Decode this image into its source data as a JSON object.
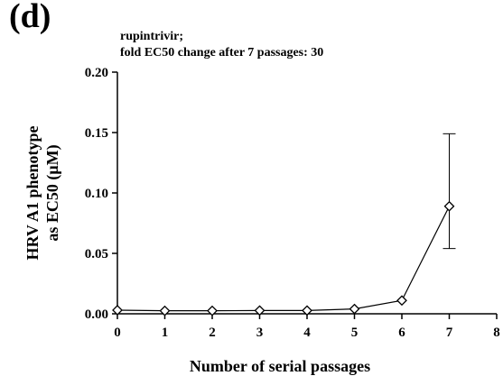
{
  "panel_label": "(d)",
  "chart_data": {
    "type": "line",
    "title_lines": [
      "rupintrivir;",
      "fold EC50 change after 7 passages: 30"
    ],
    "xlabel": "Number of serial passages",
    "ylabel_lines": [
      "HRV A1 phenotype",
      "as EC50 (μM)"
    ],
    "xlim": [
      0,
      8
    ],
    "ylim": [
      0,
      0.2
    ],
    "x_ticks": [
      0,
      1,
      2,
      3,
      4,
      5,
      6,
      7,
      8
    ],
    "x_tick_labels": [
      "0",
      "1",
      "2",
      "3",
      "4",
      "5",
      "6",
      "7",
      "8"
    ],
    "y_ticks": [
      0,
      0.05,
      0.1,
      0.15,
      0.2
    ],
    "y_tick_labels": [
      "0.00",
      "0.05",
      "0.10",
      "0.15",
      "0.20"
    ],
    "marker": "diamond-open",
    "series": [
      {
        "x": [
          0,
          1,
          2,
          3,
          4,
          5,
          6,
          7
        ],
        "y": [
          0.003,
          0.0025,
          0.0025,
          0.0027,
          0.0027,
          0.004,
          0.011,
          0.089
        ],
        "error_bars": [
          null,
          null,
          null,
          null,
          null,
          null,
          null,
          [
            0.054,
            0.149
          ]
        ]
      }
    ],
    "grid": false,
    "legend": false
  }
}
